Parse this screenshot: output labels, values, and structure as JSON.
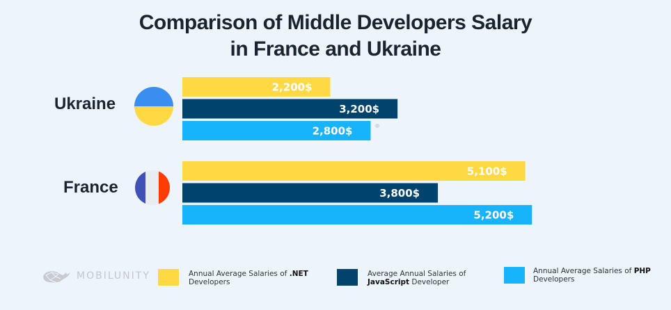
{
  "chart_data": {
    "type": "bar",
    "orientation": "horizontal",
    "title": "Comparison of Middle Developers Salary in France and Ukraine",
    "title_lines": [
      "Comparison of Middle Developers Salary",
      "in France and Ukraine"
    ],
    "categories": [
      "Ukraine",
      "France"
    ],
    "series": [
      {
        "name": "Annual Average Salaries of .NET Developers",
        "color": "#ffd944",
        "values": [
          2200,
          5100
        ],
        "labels": [
          "2,200$",
          "5,100$"
        ]
      },
      {
        "name": "Average Annual Salaries of JavaScript Developer",
        "color": "#00446d",
        "values": [
          3200,
          3800
        ],
        "labels": [
          "3,200$",
          "3,800$"
        ]
      },
      {
        "name": "Annual Average Salaries of PHP Developers",
        "color": "#18b4fb",
        "values": [
          2800,
          5200
        ],
        "labels": [
          "2,800$",
          "5,200$"
        ]
      }
    ],
    "xlim": [
      0,
      5800
    ],
    "grid": false,
    "legend_placement": "bottom",
    "xlabel": "",
    "ylabel": ""
  },
  "countries": [
    {
      "name": "Ukraine",
      "flag": "ukraine-flag",
      "flag_colors": [
        "#3a8ef0",
        "#ffd944"
      ]
    },
    {
      "name": "France",
      "flag": "france-flag",
      "flag_colors": [
        "#3f51b5",
        "#e9edf2",
        "#ff3d00"
      ]
    }
  ],
  "legend": [
    {
      "pre": "Annual Average Salaries of ",
      "bold": ".NET",
      "post": "Developers",
      "bold_first": false,
      "color": "#ffd944"
    },
    {
      "pre": "Average Annual Salaries of",
      "bold": "JavaScript",
      "post": " Developer",
      "bold_first": true,
      "color": "#00446d"
    },
    {
      "pre": "Annual Average Salaries of ",
      "bold": "PHP",
      "post": "Developers",
      "bold_first": false,
      "color": "#18b4fb"
    }
  ],
  "brand": {
    "name": "MOBILUNITY",
    "icon": "whale-logo-icon"
  }
}
